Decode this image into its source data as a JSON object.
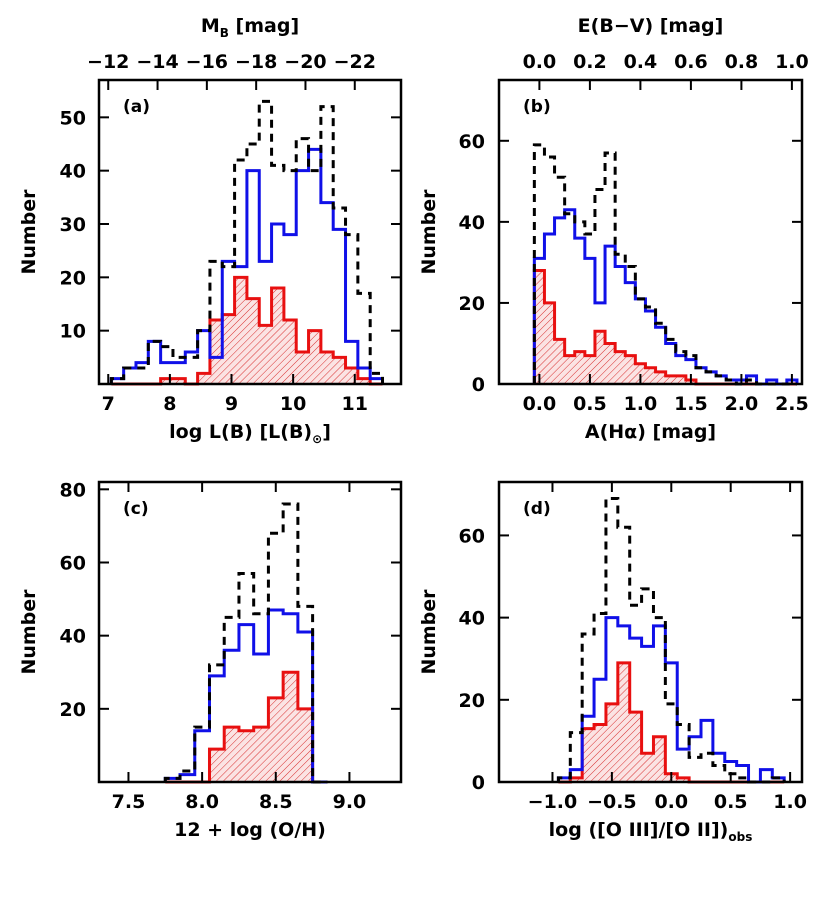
{
  "chart_data": [
    {
      "type": "histogram",
      "panel_label": "(a)",
      "xlabel": "log L(B) [L(B)",
      "xlabel_sub": "⊙",
      "xlabel_end": "]",
      "ylabel": "Number",
      "xlim": [
        6.85,
        11.75
      ],
      "ylim": [
        0,
        57
      ],
      "xticks": [
        7,
        8,
        9,
        10,
        11
      ],
      "xtick_labels": [
        "7",
        "8",
        "9",
        "10",
        "11"
      ],
      "yticks": [
        10,
        20,
        30,
        40,
        50
      ],
      "ytick_labels": [
        "10",
        "20",
        "30",
        "40",
        "50"
      ],
      "top_axis": {
        "label": "M",
        "label_sub": "B",
        "label_end": " [mag]",
        "ticks": [
          -12,
          -14,
          -16,
          -18,
          -20,
          -22
        ],
        "tick_labels": [
          "−12",
          "−14",
          "−16",
          "−18",
          "−20",
          "−22"
        ],
        "positions": [
          7.0,
          7.8,
          8.6,
          9.4,
          10.2,
          11.0
        ]
      },
      "bin_edges": [
        7.05,
        7.25,
        7.45,
        7.65,
        7.85,
        8.05,
        8.25,
        8.45,
        8.65,
        8.85,
        9.05,
        9.25,
        9.45,
        9.65,
        9.85,
        10.05,
        10.25,
        10.45,
        10.65,
        10.85,
        11.05,
        11.25,
        11.45
      ],
      "series": [
        {
          "color": "#000000",
          "style": "dashed",
          "values": [
            1,
            3,
            3,
            8,
            7,
            5,
            5,
            10,
            23,
            22,
            42,
            45,
            53,
            41,
            40,
            46,
            40,
            52,
            33,
            28,
            17,
            2
          ]
        },
        {
          "color": "#1010e8",
          "style": "solid",
          "values": [
            1,
            3,
            4,
            8,
            4,
            4,
            6,
            10,
            5,
            23,
            22,
            40,
            23,
            30,
            28,
            40,
            44,
            34,
            29,
            8,
            3,
            1
          ]
        },
        {
          "color": "#e81010",
          "style": "solid",
          "filled": true,
          "values": [
            0,
            0,
            0,
            0,
            1,
            1,
            0,
            2,
            12,
            13,
            20,
            16,
            11,
            18,
            12,
            6,
            10,
            6,
            5,
            3,
            1,
            0
          ]
        }
      ]
    },
    {
      "type": "histogram",
      "panel_label": "(b)",
      "xlabel": "A(Hα) [mag]",
      "ylabel": "Number",
      "xlim": [
        -0.4,
        2.6
      ],
      "ylim": [
        0,
        75
      ],
      "xticks": [
        0.0,
        0.5,
        1.0,
        1.5,
        2.0,
        2.5
      ],
      "xtick_labels": [
        "0.0",
        "0.5",
        "1.0",
        "1.5",
        "2.0",
        "2.5"
      ],
      "yticks": [
        0,
        20,
        40,
        60
      ],
      "ytick_labels": [
        "0",
        "20",
        "40",
        "60"
      ],
      "top_axis": {
        "label": "E(B−V) [mag]",
        "ticks": [
          0.0,
          0.2,
          0.4,
          0.6,
          0.8,
          1.0
        ],
        "tick_labels": [
          "0.0",
          "0.2",
          "0.4",
          "0.6",
          "0.8",
          "1.0"
        ],
        "positions": [
          0.0,
          0.5,
          1.0,
          1.5,
          2.0,
          2.5
        ]
      },
      "bin_edges": [
        -0.05,
        0.05,
        0.15,
        0.25,
        0.35,
        0.45,
        0.55,
        0.65,
        0.75,
        0.85,
        0.95,
        1.05,
        1.15,
        1.25,
        1.35,
        1.45,
        1.55,
        1.65,
        1.75,
        1.85,
        1.95,
        2.05,
        2.15,
        2.25,
        2.35,
        2.45,
        2.55
      ],
      "series": [
        {
          "color": "#000000",
          "style": "dashed",
          "values": [
            59,
            56,
            51,
            42,
            40,
            37,
            48,
            57,
            32,
            29,
            21,
            19,
            15,
            11,
            8,
            7,
            4,
            3,
            2,
            1,
            0,
            1,
            0,
            0,
            0,
            0
          ]
        },
        {
          "color": "#1010e8",
          "style": "solid",
          "values": [
            31,
            37,
            41,
            43,
            36,
            31,
            20,
            34,
            29,
            25,
            21,
            18,
            14,
            10,
            7,
            6,
            4,
            3,
            2,
            1,
            1,
            2,
            0,
            1,
            0,
            1
          ]
        },
        {
          "color": "#e81010",
          "style": "solid",
          "filled": true,
          "values": [
            28,
            20,
            11,
            7,
            8,
            7,
            13,
            10,
            8,
            7,
            5,
            4,
            3,
            2,
            2,
            1,
            0,
            0,
            0,
            0,
            0,
            0,
            0,
            0,
            0,
            0
          ]
        }
      ]
    },
    {
      "type": "histogram",
      "panel_label": "(c)",
      "xlabel": "12 + log (O/H)",
      "ylabel": "Number",
      "xlim": [
        7.3,
        9.35
      ],
      "ylim": [
        0,
        82
      ],
      "xticks": [
        7.5,
        8.0,
        8.5,
        9.0
      ],
      "xtick_labels": [
        "7.5",
        "8.0",
        "8.5",
        "9.0"
      ],
      "yticks": [
        20,
        40,
        60,
        80
      ],
      "ytick_labels": [
        "20",
        "40",
        "60",
        "80"
      ],
      "bin_edges": [
        7.75,
        7.85,
        7.95,
        8.05,
        8.15,
        8.25,
        8.35,
        8.45,
        8.55,
        8.65,
        8.75,
        8.85
      ],
      "series": [
        {
          "color": "#000000",
          "style": "dashed",
          "values": [
            1,
            3,
            15,
            32,
            45,
            57,
            46,
            68,
            76,
            48,
            0
          ]
        },
        {
          "color": "#1010e8",
          "style": "solid",
          "values": [
            1,
            2,
            14,
            29,
            36,
            43,
            35,
            47,
            46,
            41,
            0
          ]
        },
        {
          "color": "#e81010",
          "style": "solid",
          "filled": true,
          "values": [
            0,
            0,
            0,
            9,
            15,
            14,
            15,
            23,
            30,
            20,
            0
          ]
        }
      ]
    },
    {
      "type": "histogram",
      "panel_label": "(d)",
      "xlabel": "log ([O III]/[O II])",
      "xlabel_sub": "obs",
      "ylabel": "Number",
      "xlim": [
        -1.45,
        1.1
      ],
      "ylim": [
        0,
        73
      ],
      "xticks": [
        -1.0,
        -0.5,
        0.0,
        0.5,
        1.0
      ],
      "xtick_labels": [
        "−1.0",
        "−0.5",
        "0.0",
        "0.5",
        "1.0"
      ],
      "yticks": [
        0,
        20,
        40,
        60
      ],
      "ytick_labels": [
        "0",
        "20",
        "40",
        "60"
      ],
      "bin_edges": [
        -0.95,
        -0.85,
        -0.75,
        -0.65,
        -0.55,
        -0.45,
        -0.35,
        -0.25,
        -0.15,
        -0.05,
        0.05,
        0.15,
        0.25,
        0.35,
        0.45,
        0.55,
        0.65,
        0.75,
        0.85,
        0.95
      ],
      "series": [
        {
          "color": "#000000",
          "style": "dashed",
          "values": [
            1,
            12,
            36,
            41,
            69,
            62,
            43,
            47,
            40,
            19,
            14,
            6,
            7,
            4,
            2,
            1,
            0,
            0,
            1
          ]
        },
        {
          "color": "#1010e8",
          "style": "solid",
          "values": [
            1,
            3,
            16,
            25,
            40,
            38,
            35,
            33,
            38,
            29,
            8,
            11,
            15,
            7,
            5,
            4,
            0,
            3,
            1
          ]
        },
        {
          "color": "#e81010",
          "style": "solid",
          "filled": true,
          "values": [
            0,
            1,
            13,
            14,
            19,
            29,
            17,
            7,
            11,
            2,
            1,
            0,
            0,
            0,
            0,
            0,
            0,
            0,
            0
          ]
        }
      ]
    }
  ]
}
